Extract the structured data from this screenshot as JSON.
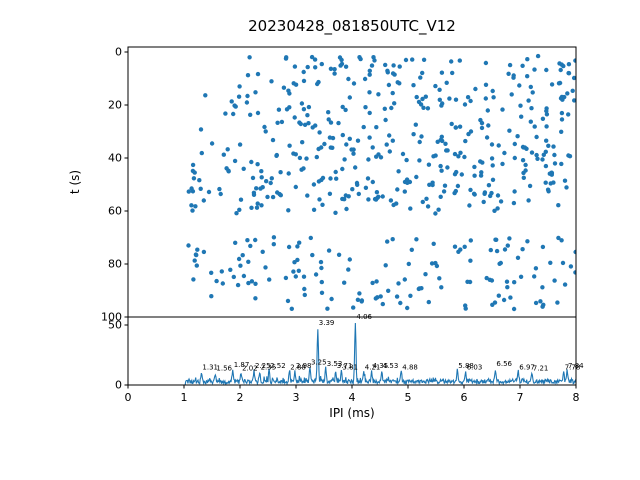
{
  "figure": {
    "title": "20230428_081850UTC_V12",
    "background_color": "#ffffff",
    "accent_color": "#1f77b4",
    "axes_color": "#000000"
  },
  "chart_data": [
    {
      "type": "scatter",
      "title": "20230428_081850UTC_V12",
      "xlabel": "",
      "ylabel": "t (s)",
      "xlim": [
        0,
        8
      ],
      "ylim": [
        102,
        -2
      ],
      "y_axis_inverted": true,
      "y_ticks": [
        0,
        20,
        40,
        60,
        80,
        100
      ],
      "grid": false,
      "legend": "none",
      "marker_color": "#1f77b4",
      "marker_radius_px": 2.2,
      "description": "Inter-pulse-interval detections over time: dense band of points for t between ~1 s and ~61 s, a gap from ~61 s to ~69 s, and a sparser band from ~69 s to ~97 s; IPI values span ~1.03 ms to 8 ms",
      "point_generation": {
        "seed": 20230428,
        "bands": [
          {
            "x_min": 1.03,
            "x_max": 8.0,
            "t_min": 1.5,
            "t_max": 61,
            "count": 470
          },
          {
            "x_min": 1.03,
            "x_max": 8.0,
            "t_min": 69.5,
            "t_max": 97,
            "count": 150
          }
        ],
        "exclusions": [
          {
            "x_max": 1.7,
            "t_max": 40,
            "drop": 0.75
          },
          {
            "x_max": 2.6,
            "t_max": 8,
            "drop": 0.7
          }
        ]
      }
    },
    {
      "type": "line",
      "xlabel": "IPI (ms)",
      "ylabel": "",
      "xlim": [
        0,
        8
      ],
      "ylim": [
        0,
        57
      ],
      "x_ticks": [
        0,
        1,
        2,
        3,
        4,
        5,
        6,
        7,
        8
      ],
      "y_ticks": [
        0,
        50
      ],
      "grid": false,
      "legend": "none",
      "line_color": "#1f77b4",
      "description": "IPI histogram trace: zero below ~1.03 ms, noisy counts of ~2-7 above, with labeled local peaks; dominant peaks at 3.39 ms (~47) and 4.06 ms (~52)",
      "noise": {
        "seed": 81850,
        "onset_x": 1.03,
        "base_min": 1.0,
        "base_max": 4.5,
        "bump_prob": 0.12,
        "bump_scale": 3.5,
        "peak_sigma": 0.011
      },
      "annotations": [
        {
          "x": 1.31,
          "label": "1.31",
          "h": 8
        },
        {
          "x": 1.56,
          "label": "1.56",
          "h": 7
        },
        {
          "x": 1.87,
          "label": "1.87",
          "h": 10
        },
        {
          "x": 2.02,
          "label": "2.02",
          "h": 7
        },
        {
          "x": 2.25,
          "label": "2.25",
          "h": 9
        },
        {
          "x": 2.35,
          "label": "2.35",
          "h": 8
        },
        {
          "x": 2.52,
          "label": "2.52",
          "h": 9
        },
        {
          "x": 2.88,
          "label": "2.88",
          "h": 8
        },
        {
          "x": 2.98,
          "label": "2.98",
          "h": 9
        },
        {
          "x": 3.25,
          "label": "3.25",
          "h": 12
        },
        {
          "x": 3.39,
          "label": "3.39",
          "h": 45
        },
        {
          "x": 3.53,
          "label": "3.53",
          "h": 11
        },
        {
          "x": 3.71,
          "label": "3.71",
          "h": 9
        },
        {
          "x": 3.81,
          "label": "3.81",
          "h": 8
        },
        {
          "x": 4.06,
          "label": "4.06",
          "h": 50
        },
        {
          "x": 4.21,
          "label": "4.21",
          "h": 8
        },
        {
          "x": 4.35,
          "label": "4.35",
          "h": 9
        },
        {
          "x": 4.53,
          "label": "4.53",
          "h": 9
        },
        {
          "x": 4.88,
          "label": "4.88",
          "h": 8
        },
        {
          "x": 5.88,
          "label": "5.88",
          "h": 9
        },
        {
          "x": 6.03,
          "label": "6.03",
          "h": 8
        },
        {
          "x": 6.56,
          "label": "6.56",
          "h": 11
        },
        {
          "x": 6.97,
          "label": "6.97",
          "h": 8
        },
        {
          "x": 7.21,
          "label": "7.21",
          "h": 7
        },
        {
          "x": 7.78,
          "label": "7.78",
          "h": 8
        },
        {
          "x": 7.84,
          "label": "7.84",
          "h": 9
        }
      ]
    }
  ]
}
